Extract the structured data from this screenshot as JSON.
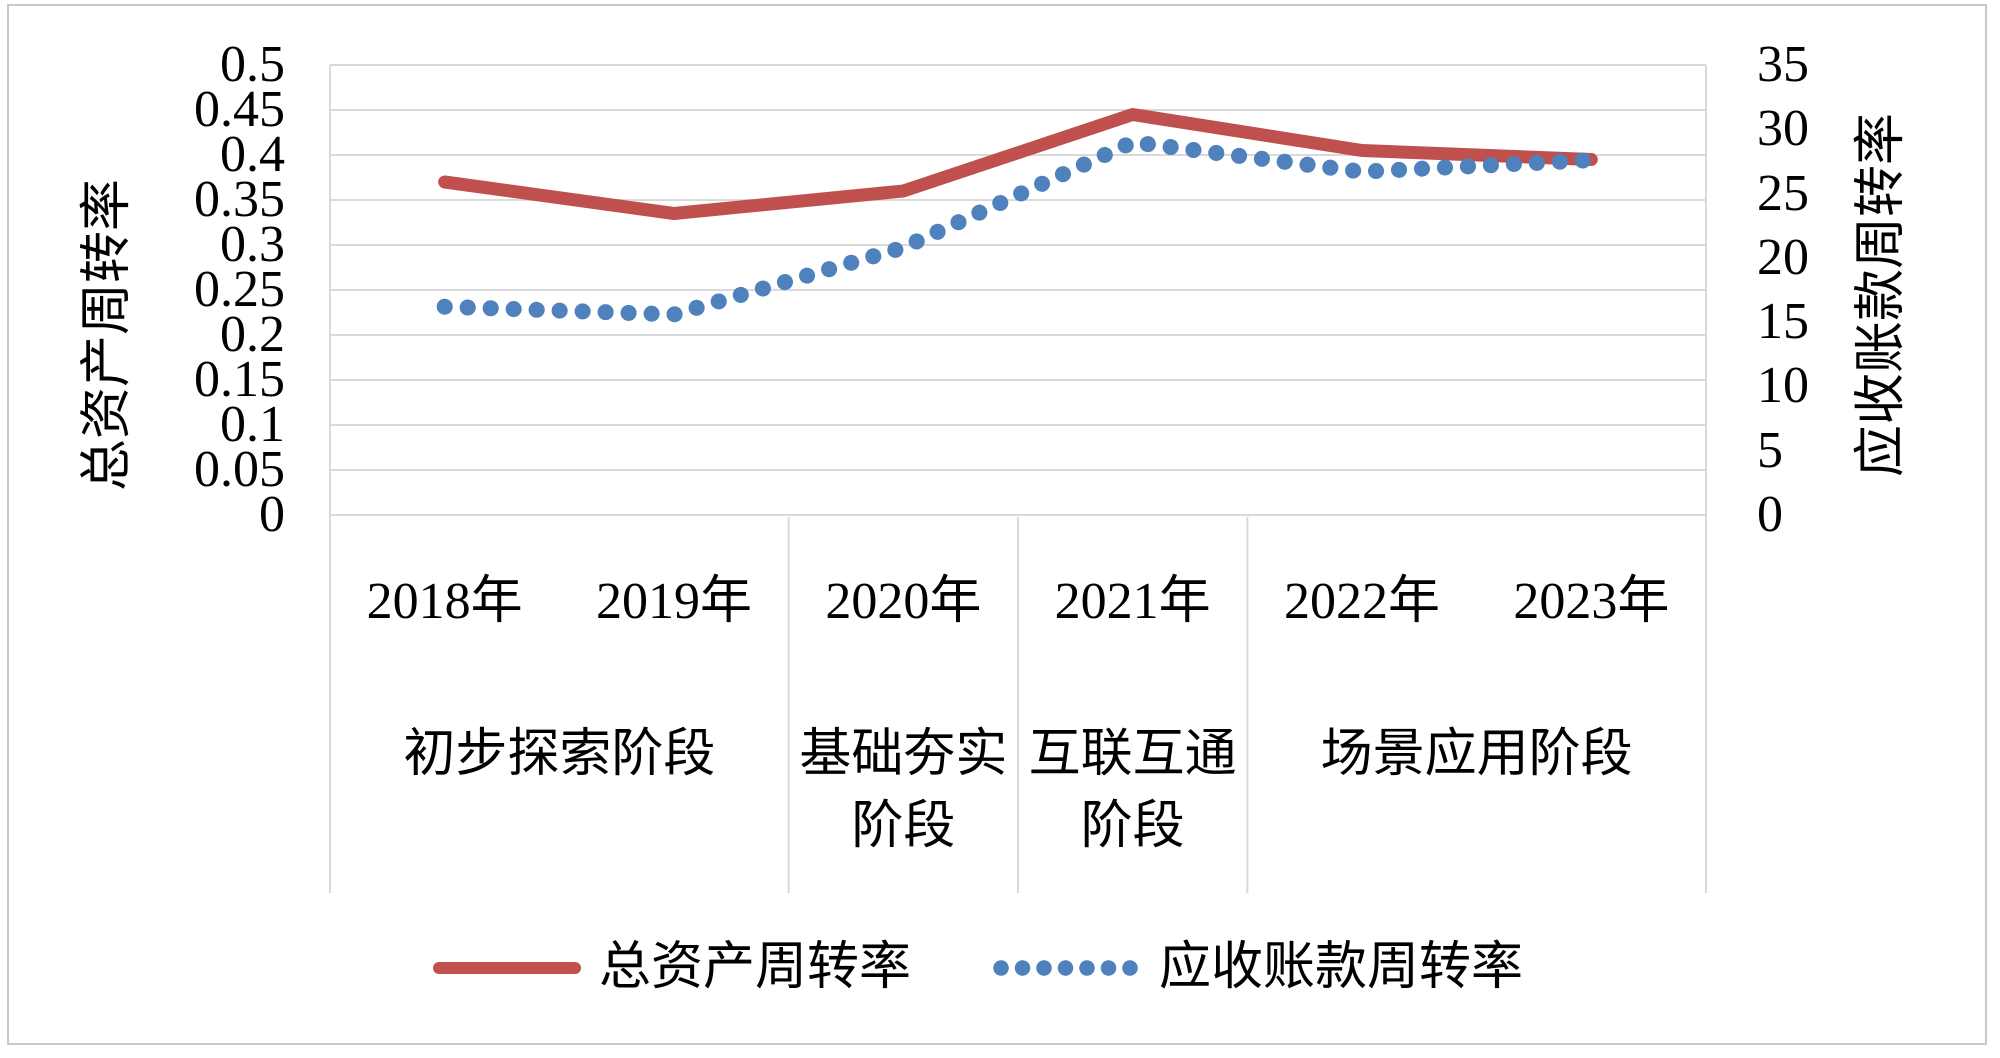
{
  "chart_data": {
    "type": "line",
    "categories": [
      "2018年",
      "2019年",
      "2020年",
      "2021年",
      "2022年",
      "2023年"
    ],
    "category_groups": [
      {
        "label": "初步探索阶段",
        "span": 2
      },
      {
        "label": "基础夯实阶段",
        "span": 1
      },
      {
        "label": "互联互通阶段",
        "span": 1
      },
      {
        "label": "场景应用阶段",
        "span": 2
      }
    ],
    "series": [
      {
        "name": "总资产周转率",
        "axis": "left",
        "style": "solid",
        "color": "#C0504D",
        "values": [
          0.37,
          0.335,
          0.36,
          0.445,
          0.405,
          0.395
        ]
      },
      {
        "name": "应收账款周转率",
        "axis": "right",
        "style": "dotted",
        "color": "#4F81BD",
        "values": [
          16.2,
          15.6,
          20.8,
          29.0,
          26.7,
          27.6
        ]
      }
    ],
    "left_axis": {
      "title": "总资产周转率",
      "min": 0,
      "max": 0.5,
      "step": 0.05,
      "ticks": [
        "0.5",
        "0.45",
        "0.4",
        "0.35",
        "0.3",
        "0.25",
        "0.2",
        "0.15",
        "0.1",
        "0.05",
        "0"
      ]
    },
    "right_axis": {
      "title": "应收账款周转率",
      "min": 0,
      "max": 35,
      "step": 5,
      "ticks": [
        "35",
        "30",
        "25",
        "20",
        "15",
        "10",
        "5",
        "0"
      ]
    },
    "legend": [
      "总资产周转率",
      "应收账款周转率"
    ],
    "grid": true,
    "grid_color": "#d9d9d9",
    "frame_color": "#c9c9c9",
    "legend_position": "bottom"
  }
}
